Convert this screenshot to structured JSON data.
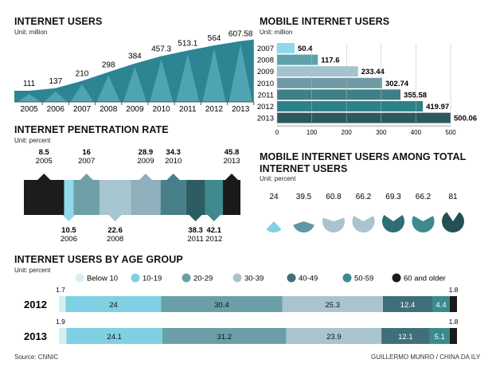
{
  "colors": {
    "c1": "#7fd0e2",
    "c2": "#6b9fa8",
    "c3": "#a9c4cf",
    "c4": "#4d7f89",
    "c5": "#3b7f86",
    "c6": "#2d5c63",
    "c7": "#1b1b1b",
    "teal": "#2d8593",
    "light": "#aee4ef"
  },
  "source": "Source: CNNIC",
  "credit": "GUILLERMO MUNRO / CHINA DA ILY",
  "chart_data": [
    {
      "type": "area",
      "title": "INTERNET USERS",
      "unit": "Unit: million",
      "categories": [
        "2005",
        "2006",
        "2007",
        "2008",
        "2009",
        "2010",
        "2011",
        "2012",
        "2013"
      ],
      "values": [
        111,
        137,
        210,
        298,
        384,
        457.3,
        513.1,
        564,
        607.58
      ],
      "value_labels": [
        "111",
        "137",
        "210",
        "298",
        "384",
        "457.3",
        "513.1",
        "564",
        "607.58"
      ]
    },
    {
      "type": "bar",
      "orientation": "horizontal",
      "title": "MOBILE INTERNET USERS",
      "unit": "Unit: million",
      "categories": [
        "2007",
        "2008",
        "2009",
        "2010",
        "2011",
        "2012",
        "2013"
      ],
      "values": [
        50.4,
        117.6,
        233.44,
        302.74,
        355.58,
        419.97,
        500.06
      ],
      "value_labels": [
        "50.4",
        "117.6",
        "233.44",
        "302.74",
        "355.58",
        "419.97",
        "500.06"
      ],
      "xticks": [
        "0",
        "100",
        "200",
        "300",
        "400",
        "500"
      ],
      "xlim": [
        0,
        500
      ]
    },
    {
      "type": "bar",
      "title": "INTERNET PENETRATION RATE",
      "unit": "Unit: percent",
      "categories": [
        "2005",
        "2006",
        "2007",
        "2008",
        "2009",
        "2010",
        "2011",
        "2012",
        "2013"
      ],
      "values": [
        8.5,
        10.5,
        16,
        22.6,
        28.9,
        34.3,
        38.3,
        42.1,
        45.8
      ],
      "value_labels": [
        "8.5",
        "10.5",
        "16",
        "22.6",
        "28.9",
        "34.3",
        "38.3",
        "42.1",
        "45.8"
      ],
      "label_positions": [
        "top",
        "bottom",
        "top",
        "bottom",
        "top",
        "top",
        "bottom",
        "bottom",
        "top"
      ]
    },
    {
      "type": "pie",
      "title": "MOBILE INTERNET USERS AMONG TOTAL INTERNET USERS",
      "unit": "Unit: percent",
      "values": [
        24,
        39.5,
        60.8,
        66.2,
        69.3,
        66.2,
        81
      ],
      "value_labels": [
        "24",
        "39.5",
        "60.8",
        "66.2",
        "69.3",
        "66.2",
        "81"
      ]
    },
    {
      "type": "bar",
      "stacked": true,
      "title": "INTERNET USERS BY AGE GROUP",
      "unit": "Unit: percent",
      "legend": [
        "Below 10",
        "10-19",
        "20-29",
        "30-39",
        "40-49",
        "50-59",
        "60 and older"
      ],
      "categories": [
        "2012",
        "2013"
      ],
      "series": [
        {
          "name": "Below 10",
          "values": [
            1.7,
            1.9
          ]
        },
        {
          "name": "10-19",
          "values": [
            24,
            24.1
          ]
        },
        {
          "name": "20-29",
          "values": [
            30.4,
            31.2
          ]
        },
        {
          "name": "30-39",
          "values": [
            25.3,
            23.9
          ]
        },
        {
          "name": "40-49",
          "values": [
            12.4,
            12.1
          ]
        },
        {
          "name": "50-59",
          "values": [
            4.4,
            5.1
          ]
        },
        {
          "name": "60 and older",
          "values": [
            1.8,
            1.8
          ]
        }
      ],
      "value_labels": [
        [
          "1.7",
          "24",
          "30.4",
          "25.3",
          "12.4",
          "4.4",
          "1.8"
        ],
        [
          "1.9",
          "24.1",
          "31.2",
          "23.9",
          "12.1",
          "5.1",
          "1.8"
        ]
      ]
    }
  ]
}
